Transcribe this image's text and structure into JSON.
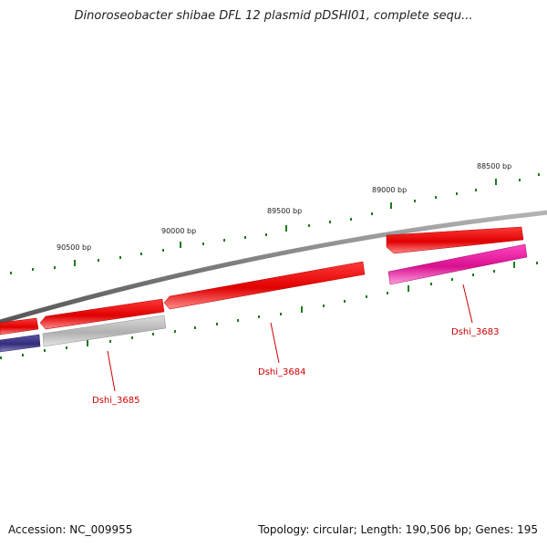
{
  "title": "Dinoroseobacter shibae DFL 12 plasmid pDSHI01, complete sequ...",
  "scale_labels": [
    "88500 bp",
    "89000 bp",
    "89500 bp",
    "90000 bp",
    "90500 bp"
  ],
  "gene_labels": [
    "Dshi_3683",
    "Dshi_3684",
    "Dshi_3685"
  ],
  "footer": {
    "accession": "Accession: NC_009955",
    "topology": "Topology: circular; Length: 190,506 bp; Genes: 195"
  },
  "colors": {
    "backbone": "#7a7a7a",
    "gene_red": "#ee0000",
    "gene_magenta": "#e0109a",
    "gene_grey": "#bdbdbd",
    "gene_navy": "#3a3385",
    "tick_green": "#1f7a1f",
    "label_red": "#cc0000"
  }
}
